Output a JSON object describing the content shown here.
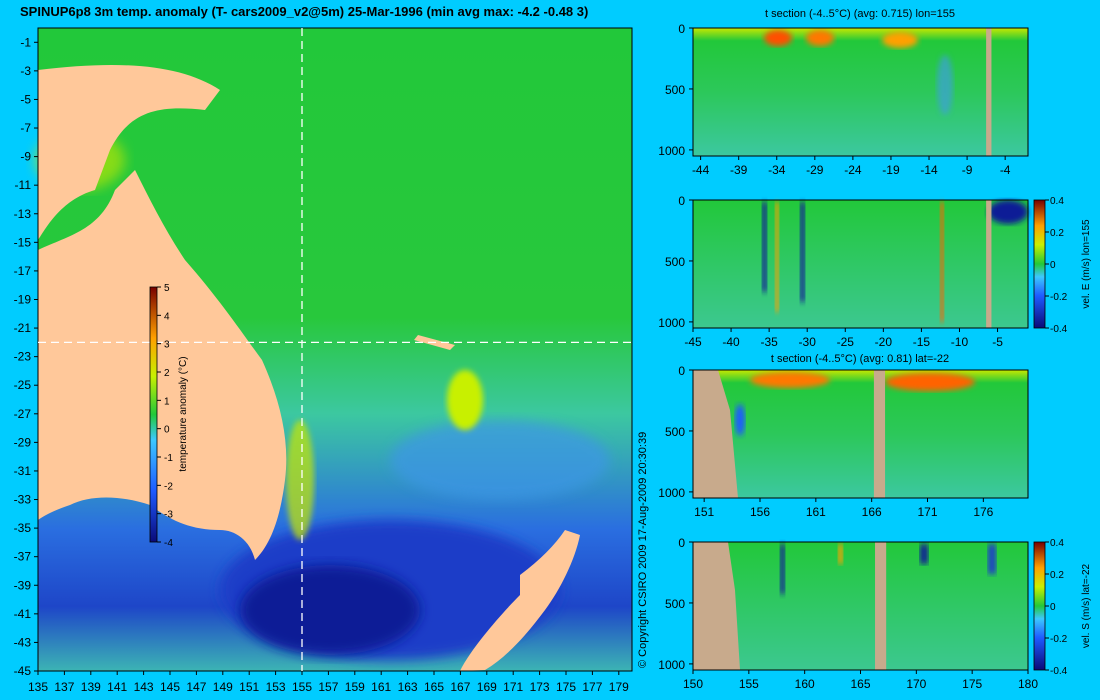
{
  "title": "SPINUP6p8 3m temp. anomaly (T- cars2009_v2@5m) 25-Mar-1996 (min avg max: -4.2 -0.48 3)",
  "copyright": "© Copyright CSIRO 2009  17-Aug-2009 20:30:39",
  "colors": {
    "background": "#00ccff",
    "land_map": "#ffc89a",
    "land_section": "#c8aa8c",
    "ocean_base": "#22c83a",
    "cold": "#1e3cc8",
    "warm": "#ffa000"
  },
  "chart_data": [
    {
      "type": "heatmap",
      "name": "map",
      "xticks": [
        "135",
        "137",
        "139",
        "141",
        "143",
        "145",
        "147",
        "149",
        "151",
        "153",
        "155",
        "157",
        "159",
        "161",
        "163",
        "165",
        "167",
        "169",
        "171",
        "173",
        "175",
        "177",
        "179"
      ],
      "yticks": [
        "-1",
        "-3",
        "-5",
        "-7",
        "-9",
        "-11",
        "-13",
        "-15",
        "-17",
        "-19",
        "-21",
        "-23",
        "-25",
        "-27",
        "-29",
        "-31",
        "-33",
        "-35",
        "-37",
        "-39",
        "-41",
        "-43",
        "-45"
      ],
      "xlim": [
        135,
        180
      ],
      "ylim": [
        -45,
        0
      ],
      "section_lon": 155,
      "section_lat": -22,
      "colorbar": {
        "label": "temperature anomaly (°C)",
        "ticks": [
          "5",
          "4",
          "3",
          "2",
          "1",
          "0",
          "-1",
          "-2",
          "-3",
          "-4"
        ],
        "range": [
          -4,
          5
        ]
      }
    },
    {
      "type": "heatmap",
      "name": "t-section-lon",
      "title": "t section (-4..5°C) (avg: 0.715) lon=155",
      "xticks": [
        "-44",
        "-39",
        "-34",
        "-29",
        "-24",
        "-19",
        "-14",
        "-9",
        "-4"
      ],
      "yticks": [
        "0",
        "500",
        "1000"
      ],
      "xlim": [
        -45,
        -1
      ],
      "ylim": [
        1050,
        0
      ],
      "land_x": [
        -6.5,
        -5.8
      ]
    },
    {
      "type": "heatmap",
      "name": "vel-e-section",
      "xticks": [
        "-45",
        "-40",
        "-35",
        "-30",
        "-25",
        "-20",
        "-15",
        "-10",
        "-5"
      ],
      "yticks": [
        "0",
        "500",
        "1000"
      ],
      "xlim": [
        -45,
        -1
      ],
      "ylim": [
        1050,
        0
      ],
      "land_x": [
        -6.5,
        -5.8
      ],
      "colorbar": {
        "label": "vel. E (m/s) lon=155",
        "ticks": [
          "0.4",
          "0.2",
          "0",
          "-0.2",
          "-0.4"
        ],
        "range": [
          -0.4,
          0.4
        ]
      }
    },
    {
      "type": "heatmap",
      "name": "t-section-lat",
      "title": "t section (-4..5°C) (avg: 0.81) lat=-22",
      "xticks": [
        "151",
        "156",
        "161",
        "166",
        "171",
        "176"
      ],
      "yticks": [
        "0",
        "500",
        "1000"
      ],
      "xlim": [
        150,
        180
      ],
      "ylim": [
        1050,
        0
      ],
      "land_x": [
        166.2,
        167.2
      ]
    },
    {
      "type": "heatmap",
      "name": "vel-s-section",
      "xticks": [
        "150",
        "155",
        "160",
        "165",
        "170",
        "175",
        "180"
      ],
      "yticks": [
        "0",
        "500",
        "1000"
      ],
      "xlim": [
        150,
        180
      ],
      "ylim": [
        1050,
        0
      ],
      "land_x": [
        166.3,
        167.3
      ],
      "colorbar": {
        "label": "vel. S (m/s) lat=-22",
        "ticks": [
          "0.4",
          "0.2",
          "0",
          "-0.2",
          "-0.4"
        ],
        "range": [
          -0.4,
          0.4
        ]
      }
    }
  ]
}
